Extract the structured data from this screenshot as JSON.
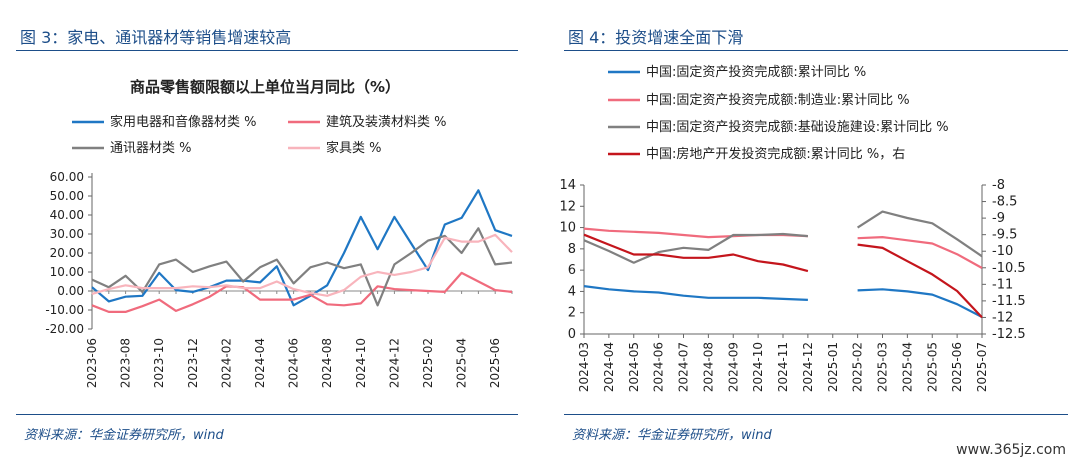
{
  "figures": [
    {
      "header": "图 3：家电、通讯器材等销售增速较高",
      "source": "资料来源：华金证券研究所，wind"
    },
    {
      "header": "图 4：投资增速全面下滑",
      "source": "资料来源：华金证券研究所，wind"
    }
  ],
  "watermark": "www.365jz.com",
  "chart_data": [
    {
      "type": "line",
      "title": "商品零售额限额以上单位当月同比（%）",
      "xlabel": "",
      "ylabel": "",
      "ylim": [
        -20,
        60
      ],
      "yticks": [
        60,
        50,
        40,
        30,
        20,
        10,
        0,
        -10,
        -20
      ],
      "ytick_labels": [
        "60.00",
        "50.00",
        "40.00",
        "30.00",
        "20.00",
        "10.00",
        "0.00",
        "-10.00",
        "-20.00"
      ],
      "x": [
        "2023-06",
        "2023-07",
        "2023-08",
        "2023-09",
        "2023-10",
        "2023-11",
        "2023-12",
        "2024-01",
        "2024-02",
        "2024-03",
        "2024-04",
        "2024-05",
        "2024-06",
        "2024-07",
        "2024-08",
        "2024-09",
        "2024-10",
        "2024-11",
        "2024-12",
        "2025-01",
        "2025-02",
        "2025-03",
        "2025-04",
        "2025-05",
        "2025-06",
        "2025-07"
      ],
      "xtick_labels": [
        "2023-06",
        "2023-08",
        "2023-10",
        "2023-12",
        "2024-02",
        "2024-04",
        "2024-06",
        "2024-08",
        "2024-10",
        "2024-12",
        "2025-02",
        "2025-04",
        "2025-06"
      ],
      "grid": false,
      "legend_position": "top",
      "series": [
        {
          "name": "家用电器和音像器材类 %",
          "color": "#1f77c4",
          "values": [
            2,
            -5.5,
            -3,
            -2.5,
            9.5,
            0.5,
            -0.5,
            2,
            5.5,
            5.5,
            4.5,
            13,
            -7.5,
            -2.5,
            3,
            20,
            39,
            22,
            39,
            25,
            11,
            35,
            38.5,
            53,
            32,
            29
          ]
        },
        {
          "name": "建筑及装潢材料类 %",
          "color": "#f06b7d",
          "values": [
            -7.5,
            -11,
            -11,
            -8,
            -4.5,
            -10.5,
            -7,
            -3,
            2.5,
            2,
            -4.5,
            -4.5,
            -4.5,
            -2,
            -7,
            -7.5,
            -6.5,
            2.5,
            1,
            0.5,
            0,
            -0.5,
            9.5,
            5,
            0.5,
            -0.5
          ]
        },
        {
          "name": "通讯器材类 %",
          "color": "#808080",
          "values": [
            6,
            2,
            8,
            -0.5,
            14,
            16.5,
            10,
            13,
            15.5,
            5,
            12.5,
            16.5,
            4,
            12.5,
            15,
            12,
            14,
            -7.5,
            14,
            20,
            26.5,
            29,
            20,
            33,
            14,
            15
          ]
        },
        {
          "name": "家具类 %",
          "color": "#f8b4bc",
          "values": [
            -1.5,
            1,
            3,
            1.5,
            1.5,
            1.5,
            2.5,
            2,
            3,
            1.5,
            1.5,
            5,
            1,
            -1,
            -2.5,
            0.5,
            7.5,
            10,
            8.5,
            10,
            12.5,
            28,
            26,
            26,
            29.5,
            20.5
          ]
        }
      ]
    },
    {
      "type": "line",
      "title": "",
      "xlabel": "",
      "ylabel": "",
      "ylim": [
        0,
        14
      ],
      "yticks": [
        14,
        12,
        10,
        8,
        6,
        4,
        2,
        0
      ],
      "y2lim": [
        -12.5,
        -8
      ],
      "y2ticks": [
        "-8",
        "-8.5",
        "-9",
        "-9.5",
        "-10",
        "-10.5",
        "-11",
        "-11.5",
        "-12",
        "-12.5"
      ],
      "x": [
        "2024-03",
        "2024-04",
        "2024-05",
        "2024-06",
        "2024-07",
        "2024-08",
        "2024-09",
        "2024-10",
        "2024-11",
        "2024-12",
        "2025-01",
        "2025-02",
        "2025-03",
        "2025-04",
        "2025-05",
        "2025-06",
        "2025-07"
      ],
      "xtick_labels": [
        "2024-03",
        "2024-04",
        "2024-05",
        "2024-06",
        "2024-07",
        "2024-08",
        "2024-09",
        "2024-10",
        "2024-11",
        "2024-12",
        "2025-01",
        "2025-02",
        "2025-03",
        "2025-04",
        "2025-05",
        "2025-06",
        "2025-07"
      ],
      "grid": false,
      "legend_position": "top-left",
      "series": [
        {
          "name": "中国:固定资产投资完成额:累计同比 %",
          "color": "#1f77c4",
          "axis": "left",
          "values": [
            4.5,
            4.2,
            4.0,
            3.9,
            3.6,
            3.4,
            3.4,
            3.4,
            3.3,
            3.2,
            null,
            4.1,
            4.2,
            4.0,
            3.7,
            2.8,
            1.6
          ]
        },
        {
          "name": "中国:固定资产投资完成额:制造业:累计同比 %",
          "color": "#f06b7d",
          "axis": "left",
          "values": [
            9.9,
            9.7,
            9.6,
            9.5,
            9.3,
            9.1,
            9.2,
            9.3,
            9.3,
            9.2,
            null,
            9.0,
            9.1,
            8.8,
            8.5,
            7.5,
            6.2
          ]
        },
        {
          "name": "中国:固定资产投资完成额:基础设施建设:累计同比 %",
          "color": "#808080",
          "axis": "left",
          "values": [
            8.8,
            7.8,
            6.7,
            7.7,
            8.1,
            7.9,
            9.3,
            9.3,
            9.4,
            9.2,
            null,
            10.0,
            11.5,
            10.9,
            10.4,
            8.9,
            7.3
          ]
        },
        {
          "name": "中国:房地产开发投资完成额:累计同比 %，右",
          "color": "#c4151c",
          "axis": "right",
          "values": [
            -9.5,
            -9.8,
            -10.1,
            -10.1,
            -10.2,
            -10.2,
            -10.1,
            -10.3,
            -10.4,
            -10.6,
            null,
            -9.8,
            -9.9,
            -10.3,
            -10.7,
            -11.2,
            -12.0
          ]
        }
      ]
    }
  ]
}
